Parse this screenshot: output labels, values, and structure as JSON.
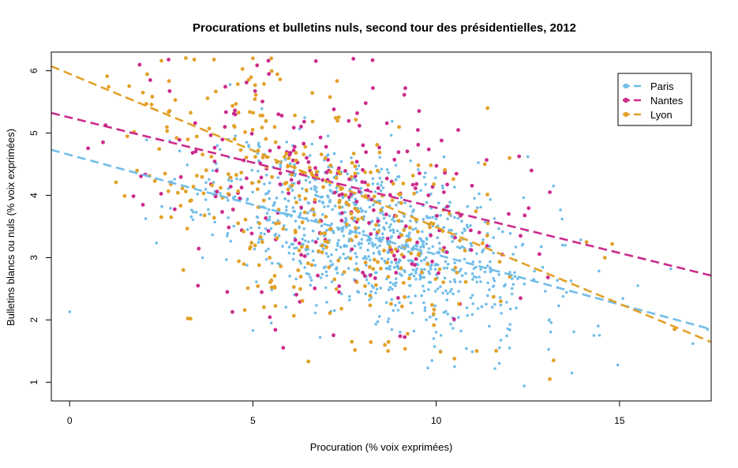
{
  "chart_data": {
    "type": "scatter",
    "title": "Procurations et bulletins nuls, second tour des présidentielles, 2012",
    "xlabel": "Procuration (% voix exprimées)",
    "ylabel": "Bulletins blancs ou nuls (% voix exprimées)",
    "xlim": [
      -0.5,
      17.5
    ],
    "ylim": [
      0.7,
      6.3
    ],
    "xticks": [
      0,
      5,
      10,
      15
    ],
    "yticks": [
      1,
      2,
      3,
      4,
      5,
      6
    ],
    "legend_position": "top-right",
    "series": [
      {
        "name": "Paris",
        "color": "#71bde9",
        "point_count": 950,
        "x_center": 8.3,
        "x_spread": 2.2,
        "y_center": 3.35,
        "y_spread": 0.62,
        "seed": 11,
        "fit": {
          "intercept": 4.65,
          "slope": -0.16
        },
        "points": [
          [
            0.0,
            2.13
          ],
          [
            12.4,
            0.94
          ],
          [
            17.4,
            1.85
          ],
          [
            17.0,
            1.62
          ],
          [
            15.5,
            2.55
          ],
          [
            16.4,
            2.82
          ],
          [
            13.7,
            1.15
          ],
          [
            11.6,
            1.22
          ],
          [
            14.3,
            1.75
          ],
          [
            13.2,
            4.15
          ],
          [
            12.5,
            4.62
          ],
          [
            12.0,
            1.55
          ],
          [
            10.5,
            1.25
          ],
          [
            5.0,
            1.83
          ],
          [
            5.5,
            1.95
          ]
        ]
      },
      {
        "name": "Nantes",
        "color": "#cc2a8c",
        "point_count": 230,
        "x_center": 7.0,
        "x_spread": 2.4,
        "y_center": 4.05,
        "y_spread": 0.9,
        "seed": 23,
        "fit": {
          "intercept": 5.25,
          "slope": -0.145
        },
        "points": [
          [
            2.0,
            3.85
          ],
          [
            2.7,
            6.18
          ],
          [
            2.2,
            5.85
          ],
          [
            3.5,
            2.55
          ],
          [
            4.3,
            2.45
          ],
          [
            12.6,
            4.4
          ],
          [
            13.1,
            4.05
          ],
          [
            11.8,
            3.05
          ],
          [
            12.3,
            2.35
          ],
          [
            9.5,
            5.05
          ],
          [
            10.6,
            5.05
          ],
          [
            12.3,
            3.35
          ]
        ]
      },
      {
        "name": "Lyon",
        "color": "#e2a129",
        "point_count": 350,
        "x_center": 6.5,
        "x_spread": 2.3,
        "y_center": 4.0,
        "y_spread": 0.95,
        "seed": 37,
        "fit": {
          "intercept": 5.95,
          "slope": -0.246
        },
        "points": [
          [
            2.0,
            5.65
          ],
          [
            2.6,
            4.35
          ],
          [
            2.5,
            3.65
          ],
          [
            3.1,
            2.8
          ],
          [
            3.4,
            6.18
          ],
          [
            5.0,
            6.2
          ],
          [
            5.5,
            6.2
          ],
          [
            13.1,
            1.05
          ],
          [
            13.2,
            1.35
          ],
          [
            14.1,
            3.25
          ],
          [
            14.8,
            3.22
          ],
          [
            14.6,
            3.0
          ],
          [
            12.0,
            4.6
          ],
          [
            16.5,
            1.85
          ],
          [
            11.4,
            5.4
          ],
          [
            7.7,
            1.65
          ],
          [
            8.6,
            1.6
          ],
          [
            3.3,
            2.02
          ]
        ]
      }
    ]
  }
}
